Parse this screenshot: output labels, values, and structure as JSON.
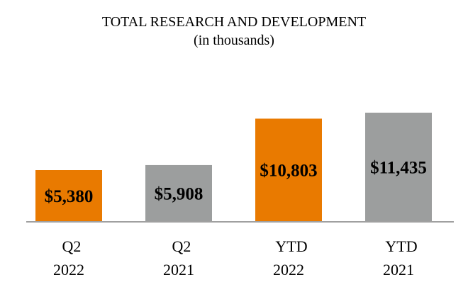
{
  "chart_data": {
    "type": "bar",
    "title": "TOTAL RESEARCH AND DEVELOPMENT",
    "subtitle": "(in thousands)",
    "categories": [
      [
        "Q2",
        "2022"
      ],
      [
        "Q2",
        "2021"
      ],
      [
        "YTD",
        "2022"
      ],
      [
        "YTD",
        "2021"
      ]
    ],
    "values": [
      5380,
      5908,
      10803,
      11435
    ],
    "data_labels": [
      "$5,380",
      "$5,908",
      "$10,803",
      "$11,435"
    ],
    "colors": [
      "#E97A00",
      "#9C9E9E",
      "#E97A00",
      "#9C9E9E"
    ],
    "axis_color": "#A0A0A0",
    "xlabel": "",
    "ylabel": "",
    "ylim": [
      0,
      11435
    ],
    "grid": false,
    "legend": "none"
  }
}
